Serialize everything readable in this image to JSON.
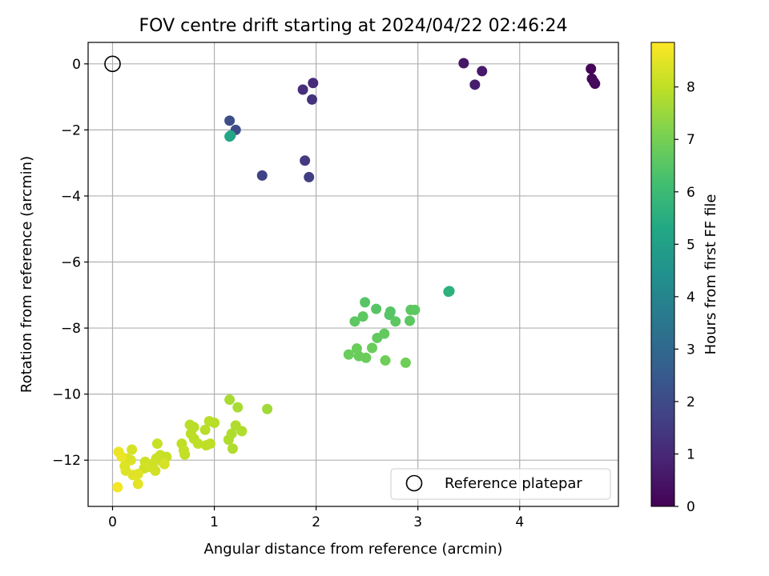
{
  "chart_data": {
    "type": "scatter",
    "title": "FOV centre drift starting at 2024/04/22 02:46:24",
    "xlabel": "Angular distance from reference (arcmin)",
    "ylabel": "Rotation from reference (arcmin)",
    "xlim": [
      -0.24,
      4.97
    ],
    "ylim": [
      -13.4,
      0.65
    ],
    "xticks": [
      0,
      1,
      2,
      3,
      4
    ],
    "yticks": [
      0,
      -2,
      -4,
      -6,
      -8,
      -10,
      -12
    ],
    "xtick_labels": [
      "0",
      "1",
      "2",
      "3",
      "4"
    ],
    "ytick_labels": [
      "0",
      "−2",
      "−4",
      "−6",
      "−8",
      "−10",
      "−12"
    ],
    "grid": true,
    "colorbar": {
      "label": "Hours from first FF file",
      "range": [
        0,
        8.85
      ],
      "ticks": [
        0,
        1,
        2,
        3,
        4,
        5,
        6,
        7,
        8
      ],
      "tick_labels": [
        "0",
        "1",
        "2",
        "3",
        "4",
        "5",
        "6",
        "7",
        "8"
      ],
      "colormap": "viridis"
    },
    "reference_point": {
      "x": 0,
      "y": 0,
      "label": "Reference platepar"
    },
    "legend_position": "lower-right",
    "series": [
      {
        "points": [
          [
            4.7,
            -0.15,
            0.1
          ],
          [
            4.71,
            -0.45,
            0.15
          ],
          [
            4.74,
            -0.6,
            0.2
          ],
          [
            4.73,
            -0.55,
            0.25
          ],
          [
            3.45,
            0.02,
            0.5
          ],
          [
            3.63,
            -0.22,
            0.6
          ],
          [
            3.56,
            -0.63,
            0.7
          ],
          [
            1.97,
            -0.58,
            1.1
          ],
          [
            1.87,
            -0.78,
            1.2
          ],
          [
            1.96,
            -1.08,
            1.3
          ],
          [
            1.89,
            -2.93,
            1.5
          ],
          [
            1.93,
            -3.43,
            1.6
          ],
          [
            1.47,
            -3.38,
            1.7
          ],
          [
            1.21,
            -2.0,
            2.0
          ],
          [
            1.15,
            -1.72,
            2.1
          ],
          [
            1.15,
            -2.2,
            5.2
          ],
          [
            1.16,
            -2.17,
            5.25
          ],
          [
            3.3,
            -6.9,
            5.6
          ],
          [
            3.31,
            -6.88,
            5.65
          ],
          [
            2.48,
            -7.22,
            6.5
          ],
          [
            2.59,
            -7.42,
            6.5
          ],
          [
            2.73,
            -7.5,
            6.5
          ],
          [
            2.72,
            -7.6,
            6.5
          ],
          [
            2.93,
            -7.45,
            6.6
          ],
          [
            2.97,
            -7.45,
            6.6
          ],
          [
            2.78,
            -7.8,
            6.6
          ],
          [
            2.92,
            -7.78,
            6.6
          ],
          [
            2.46,
            -7.65,
            6.6
          ],
          [
            2.38,
            -7.8,
            6.6
          ],
          [
            2.67,
            -8.17,
            6.7
          ],
          [
            2.6,
            -8.3,
            6.7
          ],
          [
            2.4,
            -8.62,
            6.8
          ],
          [
            2.55,
            -8.6,
            6.8
          ],
          [
            2.32,
            -8.8,
            6.8
          ],
          [
            2.42,
            -8.85,
            6.8
          ],
          [
            2.49,
            -8.9,
            6.8
          ],
          [
            2.68,
            -8.98,
            6.9
          ],
          [
            2.88,
            -9.05,
            6.9
          ],
          [
            1.52,
            -10.45,
            7.6
          ],
          [
            1.15,
            -10.17,
            7.7
          ],
          [
            1.23,
            -10.4,
            7.7
          ],
          [
            1.21,
            -10.95,
            7.8
          ],
          [
            1.27,
            -11.12,
            7.8
          ],
          [
            1.17,
            -11.2,
            7.8
          ],
          [
            1.14,
            -11.38,
            7.8
          ],
          [
            1.18,
            -11.65,
            7.8
          ],
          [
            0.95,
            -10.82,
            7.9
          ],
          [
            1.0,
            -10.87,
            7.9
          ],
          [
            0.91,
            -11.08,
            7.9
          ],
          [
            0.8,
            -11.0,
            7.9
          ],
          [
            0.76,
            -10.93,
            7.9
          ],
          [
            0.77,
            -11.2,
            7.95
          ],
          [
            0.8,
            -11.35,
            7.95
          ],
          [
            0.84,
            -11.5,
            8.0
          ],
          [
            0.92,
            -11.55,
            8.0
          ],
          [
            0.96,
            -11.5,
            8.0
          ],
          [
            0.68,
            -11.5,
            8.0
          ],
          [
            0.7,
            -11.7,
            8.05
          ],
          [
            0.71,
            -11.83,
            8.05
          ],
          [
            0.44,
            -11.5,
            8.1
          ],
          [
            0.53,
            -11.9,
            8.1
          ],
          [
            0.47,
            -11.85,
            8.1
          ],
          [
            0.5,
            -12.08,
            8.15
          ],
          [
            0.43,
            -11.95,
            8.15
          ],
          [
            0.4,
            -12.1,
            8.2
          ],
          [
            0.32,
            -12.05,
            8.2
          ],
          [
            0.31,
            -12.25,
            8.2
          ],
          [
            0.36,
            -12.2,
            8.25
          ],
          [
            0.42,
            -12.32,
            8.25
          ],
          [
            0.51,
            -12.12,
            8.3
          ],
          [
            0.19,
            -11.68,
            8.3
          ],
          [
            0.14,
            -11.95,
            8.35
          ],
          [
            0.18,
            -12.0,
            8.35
          ],
          [
            0.12,
            -12.18,
            8.4
          ],
          [
            0.13,
            -12.32,
            8.4
          ],
          [
            0.2,
            -12.45,
            8.45
          ],
          [
            0.25,
            -12.42,
            8.45
          ],
          [
            0.25,
            -12.72,
            8.5
          ],
          [
            0.06,
            -11.75,
            8.6
          ],
          [
            0.09,
            -11.9,
            8.6
          ],
          [
            0.05,
            -12.82,
            8.7
          ]
        ]
      }
    ]
  }
}
